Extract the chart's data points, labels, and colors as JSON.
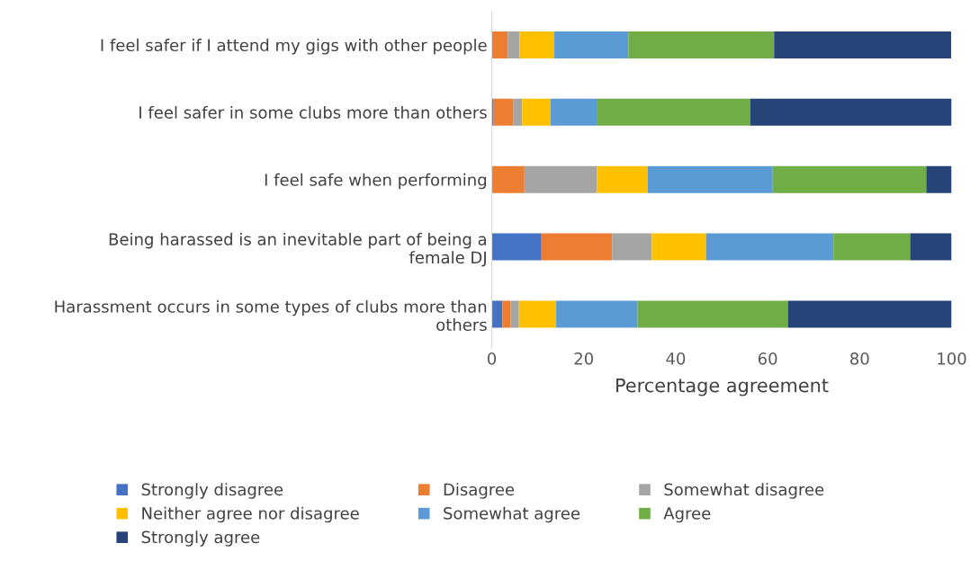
{
  "chart_data": {
    "type": "bar",
    "orientation": "horizontal",
    "stacked": true,
    "categories": [
      "I feel safer if I attend my gigs with other people",
      "I feel safer in some clubs more than others",
      "I feel safe when performing",
      "Being harassed is an inevitable part of being a\nfemale DJ",
      "Harassment occurs in some types of clubs more than\nothers"
    ],
    "series": [
      {
        "name": "Strongly disagree",
        "color": "#4472c4",
        "values": [
          0,
          0.4,
          0,
          10.8,
          2.3
        ]
      },
      {
        "name": "Disagree",
        "color": "#ed7d31",
        "values": [
          3.5,
          4.3,
          7.1,
          15.4,
          1.8
        ]
      },
      {
        "name": "Somewhat disagree",
        "color": "#a5a5a5",
        "values": [
          2.5,
          1.9,
          15.8,
          8.6,
          1.8
        ]
      },
      {
        "name": "Neither agree nor disagree",
        "color": "#ffc000",
        "values": [
          7.6,
          6.2,
          11.0,
          11.8,
          8.1
        ]
      },
      {
        "name": "Somewhat agree",
        "color": "#5b9bd5",
        "values": [
          16.1,
          10.0,
          27.2,
          27.7,
          17.7
        ]
      },
      {
        "name": "Agree",
        "color": "#70ad47",
        "values": [
          31.7,
          33.4,
          33.4,
          16.7,
          32.7
        ]
      },
      {
        "name": "Strongly agree",
        "color": "#264478",
        "values": [
          38.5,
          43.8,
          5.5,
          9.0,
          35.6
        ]
      }
    ],
    "xlabel": "Percentage agreement",
    "xlim": [
      0,
      100
    ],
    "xticks": [
      0,
      20,
      40,
      60,
      80,
      100
    ],
    "grid": false,
    "legend": "bottom"
  }
}
